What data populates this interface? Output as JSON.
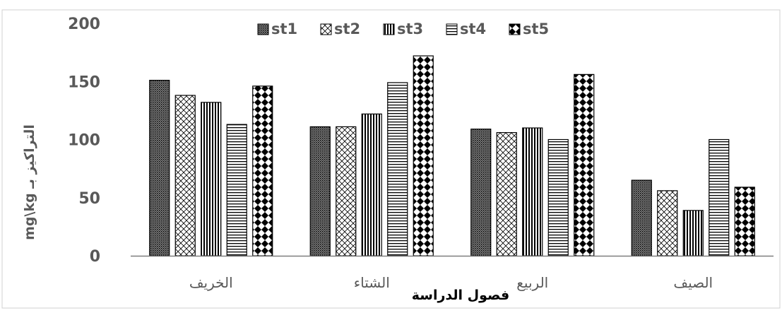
{
  "chart_data": {
    "type": "bar",
    "title": "",
    "xlabel": "فصول الدراسة",
    "ylabel": "التراكيز بـ mg\\kg",
    "categories": [
      "الخريف",
      "الشتاء",
      "الربيع",
      "الصيف"
    ],
    "series": [
      {
        "name": "st1",
        "values": [
          151,
          111,
          109,
          65
        ],
        "pattern": "dense-dots"
      },
      {
        "name": "st2",
        "values": [
          138,
          111,
          106,
          56
        ],
        "pattern": "crosshatch"
      },
      {
        "name": "st3",
        "values": [
          132,
          122,
          110,
          39
        ],
        "pattern": "vertical-lines"
      },
      {
        "name": "st4",
        "values": [
          113,
          149,
          100,
          100
        ],
        "pattern": "horizontal-lines"
      },
      {
        "name": "st5",
        "values": [
          146,
          172,
          156,
          59
        ],
        "pattern": "checker-diamonds"
      }
    ],
    "ylim": [
      0,
      200
    ],
    "yticks": [
      0,
      50,
      100,
      150,
      200
    ],
    "grid": false,
    "legend_position": "top-center",
    "colors": {
      "bar_fill_base": "#ffffff",
      "bar_pattern": "#000000",
      "axis": "#7f7f7f",
      "text": "#595959",
      "border": "#d0d0d0"
    }
  }
}
